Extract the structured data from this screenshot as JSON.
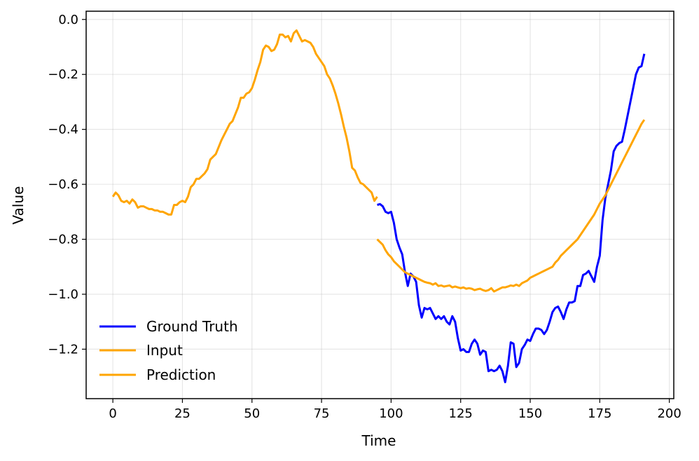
{
  "chart_data": {
    "type": "line",
    "title": "",
    "xlabel": "Time",
    "ylabel": "Value",
    "xlim": [
      -9.6,
      201.6
    ],
    "ylim": [
      -1.38,
      0.03
    ],
    "xticks": [
      0,
      25,
      50,
      75,
      100,
      125,
      150,
      175,
      200
    ],
    "xtick_labels": [
      "0",
      "25",
      "50",
      "75",
      "100",
      "125",
      "150",
      "175",
      "200"
    ],
    "yticks": [
      0.0,
      -0.2,
      -0.4,
      -0.6,
      -0.8,
      -1.0,
      -1.2
    ],
    "ytick_labels": [
      "0.0",
      "−0.2",
      "−0.4",
      "−0.6",
      "−0.8",
      "−1.0",
      "−1.2"
    ],
    "grid": true,
    "legend_position": "lower-left",
    "series": [
      {
        "name": "Ground Truth",
        "color": "#0000ff",
        "x": [
          95,
          96,
          97,
          98,
          99,
          100,
          101,
          102,
          103,
          104,
          105,
          106,
          107,
          108,
          109,
          110,
          111,
          112,
          113,
          114,
          115,
          116,
          117,
          118,
          119,
          120,
          121,
          122,
          123,
          124,
          125,
          126,
          127,
          128,
          129,
          130,
          131,
          132,
          133,
          134,
          135,
          136,
          137,
          138,
          139,
          140,
          141,
          142,
          143,
          144,
          145,
          146,
          147,
          148,
          149,
          150,
          151,
          152,
          153,
          154,
          155,
          156,
          157,
          158,
          159,
          160,
          161,
          162,
          163,
          164,
          165,
          166,
          167,
          168,
          169,
          170,
          171,
          172,
          173,
          174,
          175,
          176,
          177,
          178,
          179,
          180,
          181,
          182,
          183,
          184,
          185,
          186,
          187,
          188,
          189,
          190,
          191
        ],
        "y": [
          -0.675,
          -0.672,
          -0.68,
          -0.7,
          -0.705,
          -0.7,
          -0.74,
          -0.8,
          -0.83,
          -0.855,
          -0.92,
          -0.97,
          -0.925,
          -0.935,
          -0.955,
          -1.04,
          -1.085,
          -1.05,
          -1.055,
          -1.05,
          -1.07,
          -1.09,
          -1.08,
          -1.09,
          -1.08,
          -1.1,
          -1.11,
          -1.08,
          -1.1,
          -1.16,
          -1.205,
          -1.2,
          -1.21,
          -1.21,
          -1.18,
          -1.165,
          -1.18,
          -1.22,
          -1.205,
          -1.21,
          -1.28,
          -1.275,
          -1.28,
          -1.275,
          -1.26,
          -1.28,
          -1.32,
          -1.26,
          -1.175,
          -1.18,
          -1.265,
          -1.25,
          -1.2,
          -1.185,
          -1.165,
          -1.17,
          -1.145,
          -1.125,
          -1.125,
          -1.13,
          -1.145,
          -1.13,
          -1.1,
          -1.065,
          -1.05,
          -1.045,
          -1.065,
          -1.09,
          -1.055,
          -1.03,
          -1.03,
          -1.025,
          -0.97,
          -0.97,
          -0.93,
          -0.925,
          -0.915,
          -0.935,
          -0.955,
          -0.9,
          -0.86,
          -0.73,
          -0.65,
          -0.6,
          -0.55,
          -0.48,
          -0.46,
          -0.45,
          -0.445,
          -0.4,
          -0.35,
          -0.3,
          -0.25,
          -0.2,
          -0.175,
          -0.17,
          -0.125
        ]
      },
      {
        "name": "Input",
        "color": "#ffa500",
        "x": [
          0,
          1,
          2,
          3,
          4,
          5,
          6,
          7,
          8,
          9,
          10,
          11,
          12,
          13,
          14,
          15,
          16,
          17,
          18,
          19,
          20,
          21,
          22,
          23,
          24,
          25,
          26,
          27,
          28,
          29,
          30,
          31,
          32,
          33,
          34,
          35,
          36,
          37,
          38,
          39,
          40,
          41,
          42,
          43,
          44,
          45,
          46,
          47,
          48,
          49,
          50,
          51,
          52,
          53,
          54,
          55,
          56,
          57,
          58,
          59,
          60,
          61,
          62,
          63,
          64,
          65,
          66,
          67,
          68,
          69,
          70,
          71,
          72,
          73,
          74,
          75,
          76,
          77,
          78,
          79,
          80,
          81,
          82,
          83,
          84,
          85,
          86,
          87,
          88,
          89,
          90,
          91,
          92,
          93,
          94,
          95
        ],
        "y": [
          -0.645,
          -0.63,
          -0.64,
          -0.66,
          -0.665,
          -0.66,
          -0.67,
          -0.655,
          -0.665,
          -0.685,
          -0.68,
          -0.68,
          -0.685,
          -0.69,
          -0.69,
          -0.695,
          -0.695,
          -0.7,
          -0.7,
          -0.705,
          -0.71,
          -0.71,
          -0.675,
          -0.675,
          -0.665,
          -0.66,
          -0.665,
          -0.645,
          -0.61,
          -0.6,
          -0.58,
          -0.58,
          -0.57,
          -0.56,
          -0.545,
          -0.51,
          -0.5,
          -0.49,
          -0.465,
          -0.44,
          -0.42,
          -0.4,
          -0.38,
          -0.37,
          -0.345,
          -0.32,
          -0.285,
          -0.285,
          -0.27,
          -0.265,
          -0.25,
          -0.22,
          -0.185,
          -0.155,
          -0.11,
          -0.095,
          -0.1,
          -0.115,
          -0.11,
          -0.09,
          -0.055,
          -0.055,
          -0.065,
          -0.06,
          -0.08,
          -0.05,
          -0.04,
          -0.06,
          -0.08,
          -0.075,
          -0.08,
          -0.085,
          -0.1,
          -0.125,
          -0.14,
          -0.155,
          -0.17,
          -0.2,
          -0.215,
          -0.24,
          -0.27,
          -0.305,
          -0.345,
          -0.39,
          -0.43,
          -0.48,
          -0.54,
          -0.55,
          -0.575,
          -0.595,
          -0.6,
          -0.61,
          -0.62,
          -0.63,
          -0.66,
          -0.645
        ]
      },
      {
        "name": "Prediction",
        "color": "#ffa500",
        "x": [
          95,
          96,
          97,
          98,
          99,
          100,
          101,
          102,
          103,
          104,
          105,
          106,
          107,
          108,
          109,
          110,
          111,
          112,
          113,
          114,
          115,
          116,
          117,
          118,
          119,
          120,
          121,
          122,
          123,
          124,
          125,
          126,
          127,
          128,
          129,
          130,
          131,
          132,
          133,
          134,
          135,
          136,
          137,
          138,
          139,
          140,
          141,
          142,
          143,
          144,
          145,
          146,
          147,
          148,
          149,
          150,
          151,
          152,
          153,
          154,
          155,
          156,
          157,
          158,
          159,
          160,
          161,
          162,
          163,
          164,
          165,
          166,
          167,
          168,
          169,
          170,
          171,
          172,
          173,
          174,
          175,
          176,
          177,
          178,
          179,
          180,
          181,
          182,
          183,
          184,
          185,
          186,
          187,
          188,
          189,
          190,
          191
        ],
        "y": [
          -0.8,
          -0.81,
          -0.82,
          -0.84,
          -0.855,
          -0.865,
          -0.88,
          -0.89,
          -0.9,
          -0.91,
          -0.92,
          -0.925,
          -0.93,
          -0.935,
          -0.94,
          -0.945,
          -0.95,
          -0.955,
          -0.958,
          -0.96,
          -0.965,
          -0.96,
          -0.97,
          -0.968,
          -0.972,
          -0.97,
          -0.968,
          -0.975,
          -0.972,
          -0.975,
          -0.978,
          -0.975,
          -0.98,
          -0.978,
          -0.98,
          -0.985,
          -0.982,
          -0.98,
          -0.985,
          -0.988,
          -0.985,
          -0.978,
          -0.99,
          -0.985,
          -0.98,
          -0.975,
          -0.975,
          -0.972,
          -0.968,
          -0.97,
          -0.965,
          -0.97,
          -0.96,
          -0.955,
          -0.95,
          -0.94,
          -0.935,
          -0.93,
          -0.925,
          -0.92,
          -0.915,
          -0.91,
          -0.905,
          -0.9,
          -0.885,
          -0.875,
          -0.86,
          -0.85,
          -0.84,
          -0.83,
          -0.82,
          -0.81,
          -0.8,
          -0.785,
          -0.77,
          -0.755,
          -0.74,
          -0.725,
          -0.71,
          -0.69,
          -0.67,
          -0.655,
          -0.64,
          -0.62,
          -0.6,
          -0.58,
          -0.56,
          -0.54,
          -0.52,
          -0.5,
          -0.48,
          -0.46,
          -0.44,
          -0.42,
          -0.4,
          -0.38,
          -0.365
        ]
      }
    ]
  }
}
